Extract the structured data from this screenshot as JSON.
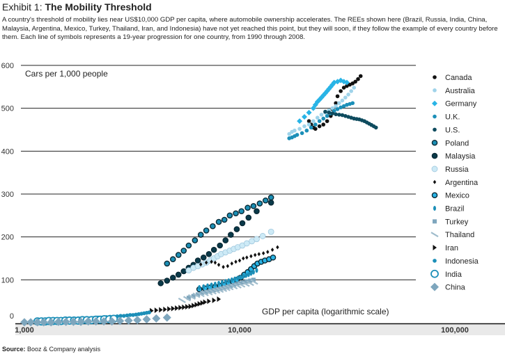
{
  "header": {
    "exhibit_label": "Exhibit 1: ",
    "title": "The Mobility Threshold",
    "subtitle": "A country's threshold of mobility lies near US$10,000 GDP per capita, where automobile ownership accelerates. The REEs shown here (Brazil, Russia, India, China, Malaysia, Argentina, Mexico, Turkey, Thailand, Iran, and Indonesia) have not yet reached this point, but they will soon, if they follow the example of every country before them. Each line of symbols represents a 19-year progression for one country, from 1990 through 2008."
  },
  "footer": {
    "source_label": "Source:",
    "source_text": " Booz & Company analysis"
  },
  "colors": {
    "black": "#111111",
    "light_blue": "#9fd3ea",
    "cyan": "#29b4e6",
    "teal": "#1c8fb8",
    "dark_teal": "#0e4b5e",
    "mid_teal": "#1c8fb5",
    "navy": "#0a3a4a",
    "pale_blue": "#cdeaf6",
    "gray_blue": "#7ea6bd",
    "slate": "#5f90ab"
  },
  "chart_data": {
    "type": "scatter",
    "xlabel": "GDP per capita (logarithmic scale)",
    "ylabel": "Cars per 1,000 people",
    "x_scale": "log",
    "xlim": [
      1000,
      120000
    ],
    "ylim": [
      0,
      600
    ],
    "x_ticks": [
      1000,
      10000,
      100000
    ],
    "x_tick_labels": [
      "1,000",
      "10,000",
      "100,000"
    ],
    "y_ticks": [
      0,
      100,
      200,
      300,
      400,
      500,
      600
    ],
    "y_tick_labels": [
      "0",
      "100",
      "200",
      "300",
      "400",
      "500",
      "600"
    ],
    "grid": "horizontal",
    "legend_position": "right",
    "series": [
      {
        "name": "Canada",
        "marker": "dot",
        "color": "#111111",
        "x": [
          21000,
          21500,
          22000,
          22500,
          23500,
          24500,
          25500,
          26500,
          27000,
          28000,
          28500,
          29500,
          30500,
          31500,
          32500,
          33500,
          34500,
          35500,
          36500
        ],
        "y": [
          470,
          462,
          455,
          452,
          458,
          462,
          470,
          482,
          498,
          512,
          528,
          540,
          548,
          552,
          555,
          558,
          562,
          568,
          575
        ]
      },
      {
        "name": "Australia",
        "marker": "dot",
        "color": "#9fd3ea",
        "x": [
          17000,
          17500,
          18000,
          19000,
          20000,
          21000,
          22000,
          23000,
          24000,
          25000,
          26000,
          27000,
          28000,
          29000,
          30000,
          31000,
          32000,
          33000,
          34000
        ],
        "y": [
          440,
          445,
          448,
          452,
          458,
          462,
          470,
          478,
          485,
          490,
          495,
          500,
          505,
          512,
          518,
          525,
          532,
          540,
          548
        ]
      },
      {
        "name": "Germany",
        "marker": "diamond",
        "color": "#29b4e6",
        "x": [
          19000,
          20000,
          21000,
          22000,
          22500,
          23000,
          23500,
          24000,
          24500,
          25000,
          25500,
          26000,
          26500,
          27000,
          27500,
          28500,
          29500,
          30500,
          31500
        ],
        "y": [
          470,
          480,
          490,
          500,
          508,
          515,
          520,
          525,
          530,
          535,
          540,
          545,
          550,
          555,
          560,
          562,
          565,
          562,
          560
        ]
      },
      {
        "name": "U.K.",
        "marker": "dot",
        "color": "#1c8fb8",
        "x": [
          17000,
          17500,
          18000,
          18500,
          19500,
          20500,
          21500,
          22500,
          23500,
          24500,
          25500,
          26500,
          27500,
          28500,
          29500,
          30500,
          31500,
          32500,
          33500
        ],
        "y": [
          430,
          432,
          435,
          438,
          442,
          448,
          455,
          462,
          470,
          476,
          482,
          488,
          494,
          498,
          502,
          505,
          508,
          510,
          512
        ]
      },
      {
        "name": "U.S.",
        "marker": "dot",
        "color": "#0e4b5e",
        "x": [
          25000,
          26000,
          27000,
          28000,
          29000,
          30000,
          31000,
          32000,
          33000,
          34000,
          35000,
          36000,
          37000,
          38000,
          39000,
          40000,
          41000,
          42000,
          43000
        ],
        "y": [
          492,
          490,
          488,
          486,
          485,
          484,
          482,
          480,
          478,
          476,
          475,
          474,
          472,
          470,
          467,
          464,
          461,
          458,
          455
        ]
      },
      {
        "name": "Poland",
        "marker": "ringed",
        "color": "#1c8fb5",
        "x": [
          4600,
          4900,
          5200,
          5500,
          5800,
          6200,
          6600,
          7000,
          7500,
          8000,
          8500,
          9000,
          9600,
          10200,
          10900,
          11600,
          12400,
          13200,
          14000
        ],
        "y": [
          138,
          148,
          158,
          168,
          180,
          192,
          205,
          215,
          225,
          235,
          240,
          250,
          255,
          260,
          268,
          272,
          278,
          285,
          292
        ]
      },
      {
        "name": "Malaysia",
        "marker": "ringed",
        "color": "#0a3a4a",
        "x": [
          4300,
          4600,
          4900,
          5200,
          5500,
          5800,
          6100,
          6400,
          6800,
          7200,
          7600,
          8100,
          8600,
          9100,
          9700,
          10300,
          11000,
          12000,
          14000
        ],
        "y": [
          92,
          98,
          105,
          112,
          120,
          128,
          135,
          145,
          152,
          160,
          170,
          180,
          192,
          205,
          218,
          232,
          245,
          260,
          280
        ]
      },
      {
        "name": "Russia",
        "marker": "bigdot",
        "color": "#cdeaf6",
        "x": [
          5800,
          6100,
          6400,
          6700,
          7000,
          7300,
          7600,
          7900,
          8200,
          8600,
          9000,
          9400,
          9800,
          10300,
          10800,
          11400,
          12000,
          12800,
          14000
        ],
        "y": [
          122,
          128,
          132,
          136,
          140,
          145,
          150,
          155,
          160,
          164,
          168,
          172,
          176,
          180,
          185,
          190,
          195,
          202,
          212
        ]
      },
      {
        "name": "Argentina",
        "marker": "smalldiamond",
        "color": "#111111",
        "x": [
          6600,
          7000,
          7400,
          7700,
          8000,
          8400,
          8800,
          9200,
          9600,
          10000,
          10400,
          10800,
          11300,
          11800,
          12300,
          12900,
          13500,
          14200,
          15000
        ],
        "y": [
          136,
          140,
          142,
          140,
          135,
          130,
          132,
          138,
          142,
          145,
          150,
          152,
          155,
          158,
          160,
          162,
          165,
          170,
          176
        ]
      },
      {
        "name": "Mexico",
        "marker": "ringed",
        "color": "#29b4e6",
        "x": [
          6500,
          6900,
          7300,
          7700,
          8100,
          8500,
          8900,
          9300,
          9700,
          10100,
          10500,
          10900,
          11300,
          11700,
          12100,
          12600,
          13100,
          13700,
          14300
        ],
        "y": [
          78,
          80,
          82,
          84,
          86,
          88,
          92,
          96,
          100,
          105,
          112,
          118,
          125,
          132,
          138,
          142,
          145,
          148,
          152
        ]
      },
      {
        "name": "Brazil",
        "marker": "ellipse",
        "color": "#1c8fb8",
        "x": [
          6500,
          6800,
          7100,
          7400,
          7700,
          8000,
          8300,
          8600,
          8900,
          9200,
          9500,
          9800,
          10100,
          10400,
          10700,
          11000,
          11300,
          11600,
          12000
        ],
        "y": [
          82,
          84,
          86,
          88,
          90,
          92,
          94,
          96,
          98,
          100,
          102,
          104,
          106,
          108,
          110,
          112,
          115,
          118,
          122
        ]
      },
      {
        "name": "Turkey",
        "marker": "square",
        "color": "#7ea6bd",
        "x": [
          5800,
          6100,
          6400,
          6700,
          7000,
          7300,
          7600,
          7900,
          8200,
          8500,
          8800,
          9100,
          9400,
          9700,
          10000,
          10400,
          10800,
          11200,
          11600
        ],
        "y": [
          58,
          62,
          66,
          70,
          72,
          74,
          76,
          78,
          80,
          82,
          84,
          86,
          88,
          90,
          92,
          94,
          96,
          98,
          100
        ]
      },
      {
        "name": "Thailand",
        "marker": "dash",
        "color": "#9fbccc",
        "x": [
          5400,
          5700,
          6000,
          6300,
          6600,
          6900,
          7200,
          7500,
          7800,
          8100,
          8400,
          8700,
          9000,
          9400,
          9800,
          10200,
          10700,
          11200,
          11700
        ],
        "y": [
          52,
          56,
          60,
          64,
          66,
          68,
          70,
          72,
          74,
          76,
          78,
          80,
          82,
          84,
          86,
          88,
          90,
          92,
          95
        ]
      },
      {
        "name": "Iran",
        "marker": "triangle",
        "color": "#111111",
        "x": [
          3900,
          4100,
          4300,
          4500,
          4700,
          4900,
          5100,
          5300,
          5500,
          5700,
          5900,
          6100,
          6300,
          6500,
          6700,
          6900,
          7200,
          7600,
          8000
        ],
        "y": [
          28,
          29,
          30,
          31,
          32,
          33,
          34,
          35,
          36,
          37,
          38,
          40,
          42,
          44,
          46,
          48,
          50,
          52,
          55
        ]
      },
      {
        "name": "Indonesia",
        "marker": "dot",
        "color": "#1c8fb8",
        "x": [
          2000,
          2100,
          2200,
          2300,
          2400,
          2500,
          2600,
          2700,
          2800,
          2900,
          3000,
          3100,
          3200,
          3300,
          3400,
          3500,
          3600,
          3700,
          3800
        ],
        "y": [
          10,
          11,
          12,
          12,
          13,
          14,
          14,
          15,
          16,
          16,
          17,
          18,
          18,
          19,
          20,
          21,
          22,
          23,
          24
        ]
      },
      {
        "name": "India",
        "marker": "ring",
        "color": "#1c8fb8",
        "x": [
          1150,
          1200,
          1250,
          1300,
          1360,
          1420,
          1480,
          1550,
          1620,
          1700,
          1780,
          1860,
          1950,
          2050,
          2150,
          2250,
          2350,
          2480,
          2600
        ],
        "y": [
          3,
          3,
          3,
          4,
          4,
          4,
          4,
          5,
          5,
          5,
          5,
          6,
          6,
          6,
          7,
          7,
          8,
          8,
          9
        ]
      },
      {
        "name": "China",
        "marker": "bigdiamond",
        "color": "#7ea6bd",
        "x": [
          1000,
          1070,
          1150,
          1230,
          1330,
          1440,
          1560,
          1690,
          1830,
          1980,
          2150,
          2340,
          2550,
          2780,
          3050,
          3350,
          3700,
          4100,
          4600
        ],
        "y": [
          1,
          1,
          1,
          1,
          1,
          2,
          2,
          2,
          2,
          3,
          3,
          3,
          3,
          4,
          5,
          6,
          8,
          10,
          12
        ]
      }
    ]
  }
}
